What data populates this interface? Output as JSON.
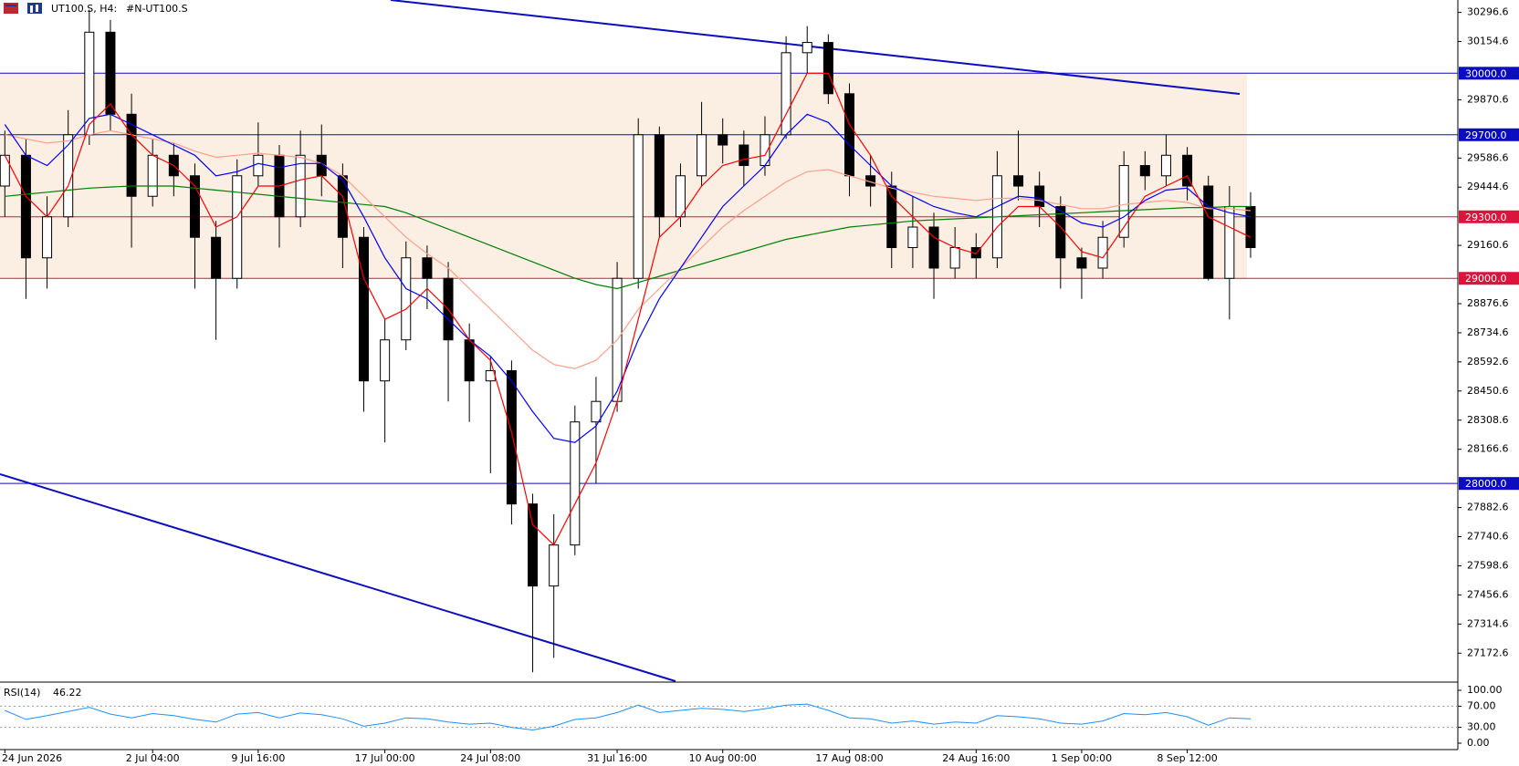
{
  "chart_data": {
    "type": "candlestick",
    "symbol": "UT100.S, H4:",
    "name": "#N-UT100.S",
    "categories": [
      "24 Jun 2026",
      null,
      null,
      null,
      null,
      null,
      null,
      "2 Jul 04:00",
      null,
      null,
      null,
      null,
      "9 Jul 16:00",
      null,
      null,
      null,
      null,
      null,
      "17 Jul 00:00",
      null,
      null,
      null,
      null,
      "24 Jul 08:00",
      null,
      null,
      null,
      null,
      null,
      "31 Jul 16:00",
      null,
      null,
      null,
      null,
      "10 Aug 00:00",
      null,
      null,
      null,
      null,
      null,
      "17 Aug 08:00",
      null,
      null,
      null,
      null,
      null,
      "24 Aug 16:00",
      null,
      null,
      null,
      null,
      "1 Sep 00:00",
      null,
      null,
      null,
      null,
      "8 Sep 12:00",
      null,
      null,
      null
    ],
    "open": [
      29450,
      29600,
      29100,
      29300,
      29700,
      30200,
      29800,
      29400,
      29600,
      29500,
      29200,
      29000,
      29500,
      29600,
      29300,
      29600,
      29500,
      29200,
      28500,
      28700,
      29100,
      29000,
      28700,
      28500,
      28550,
      27900,
      27500,
      27700,
      28300,
      28400,
      29000,
      29700,
      29300,
      29500,
      29700,
      29650,
      29550,
      29700,
      30100,
      30150,
      29900,
      29500,
      29450,
      29150,
      29250,
      29050,
      29150,
      29100,
      29500,
      29450,
      29350,
      29100,
      29050,
      29200,
      29550,
      29500,
      29600,
      29450,
      29000,
      29350
    ],
    "high": [
      29720,
      29680,
      29400,
      29820,
      30310,
      30260,
      29900,
      29680,
      29660,
      29560,
      29280,
      29580,
      29760,
      29650,
      29720,
      29750,
      29560,
      29250,
      28800,
      29180,
      29160,
      29080,
      28780,
      28620,
      28600,
      27950,
      27850,
      28380,
      28520,
      29080,
      29780,
      29740,
      29560,
      29860,
      29780,
      29720,
      29790,
      30180,
      30230,
      30190,
      29950,
      29600,
      29520,
      29400,
      29320,
      29250,
      29220,
      29620,
      29720,
      29520,
      29400,
      29150,
      29280,
      29620,
      29620,
      29700,
      29640,
      29500,
      29450,
      29420
    ],
    "low": [
      29300,
      28900,
      28950,
      29250,
      29650,
      29720,
      29150,
      29350,
      29400,
      28950,
      28700,
      28950,
      29450,
      29150,
      29250,
      29400,
      29050,
      28350,
      28200,
      28650,
      28850,
      28400,
      28300,
      28050,
      27800,
      27080,
      27150,
      27650,
      28000,
      28350,
      28950,
      29200,
      29250,
      29450,
      29560,
      29450,
      29500,
      29680,
      30000,
      29850,
      29400,
      29350,
      29050,
      29050,
      28900,
      29000,
      29000,
      29050,
      29380,
      29250,
      28950,
      28900,
      29000,
      29150,
      29430,
      29450,
      29380,
      28990,
      28800,
      29100
    ],
    "close": [
      29600,
      29100,
      29300,
      29700,
      30200,
      29800,
      29400,
      29600,
      29500,
      29200,
      29000,
      29500,
      29600,
      29300,
      29600,
      29500,
      29200,
      28500,
      28700,
      29100,
      29000,
      28700,
      28500,
      28550,
      27900,
      27500,
      27700,
      28300,
      28400,
      29000,
      29700,
      29300,
      29500,
      29700,
      29650,
      29550,
      29700,
      30100,
      30150,
      29900,
      29500,
      29450,
      29150,
      29250,
      29050,
      29150,
      29100,
      29500,
      29450,
      29350,
      29100,
      29050,
      29200,
      29550,
      29500,
      29600,
      29450,
      29000,
      29350,
      29150
    ],
    "ylim": [
      27036,
      30357
    ],
    "yticks": [
      30296.6,
      30154.6,
      29870.6,
      29586.6,
      29444.6,
      29160.6,
      28876.6,
      28734.6,
      28592.6,
      28450.6,
      28308.6,
      28166.6,
      27882.6,
      27740.6,
      27598.6,
      27456.6,
      27314.6,
      27172.6
    ],
    "zone": [
      29000,
      30000
    ],
    "zone_color": "#fbeee3",
    "levels": [
      {
        "value": 30000,
        "label": "30000.0",
        "color": "#0c0cc0"
      },
      {
        "value": 29700,
        "label": "29700.0",
        "color": "#0c0cc0"
      },
      {
        "value": 29300,
        "label": "29300.0",
        "color": "#dc143c"
      },
      {
        "value": 29000,
        "label": "29000.0",
        "color": "#dc143c"
      },
      {
        "value": 28000,
        "label": "28000.0",
        "color": "#0c0cc0"
      }
    ],
    "ma": [
      {
        "color": "#008000",
        "values": [
          29400,
          29410,
          29420,
          29430,
          29440,
          29445,
          29450,
          29450,
          29450,
          29440,
          29430,
          29420,
          29410,
          29400,
          29390,
          29380,
          29370,
          29360,
          29350,
          29320,
          29280,
          29240,
          29200,
          29160,
          29120,
          29080,
          29040,
          29000,
          28970,
          28950,
          28980,
          29010,
          29040,
          29070,
          29100,
          29130,
          29160,
          29190,
          29210,
          29230,
          29250,
          29260,
          29270,
          29280,
          29285,
          29290,
          29295,
          29300,
          29305,
          29310,
          29315,
          29320,
          29325,
          29330,
          29335,
          29340,
          29345,
          29345,
          29350,
          29350
        ]
      },
      {
        "color": "#ff9f8a",
        "values": [
          29700,
          29680,
          29660,
          29670,
          29700,
          29720,
          29700,
          29680,
          29660,
          29620,
          29590,
          29600,
          29610,
          29600,
          29590,
          29560,
          29500,
          29400,
          29300,
          29200,
          29120,
          29050,
          28950,
          28850,
          28750,
          28650,
          28580,
          28560,
          28600,
          28700,
          28850,
          28950,
          29050,
          29150,
          29250,
          29330,
          29400,
          29470,
          29520,
          29530,
          29500,
          29470,
          29440,
          29420,
          29400,
          29390,
          29380,
          29390,
          29390,
          29380,
          29360,
          29340,
          29340,
          29360,
          29370,
          29380,
          29370,
          29340,
          29340,
          29330
        ]
      },
      {
        "color": "#0000ff",
        "values": [
          29750,
          29600,
          29550,
          29650,
          29780,
          29800,
          29750,
          29700,
          29650,
          29600,
          29500,
          29520,
          29560,
          29540,
          29560,
          29560,
          29480,
          29300,
          29100,
          28950,
          28900,
          28800,
          28700,
          28620,
          28500,
          28350,
          28220,
          28200,
          28280,
          28450,
          28700,
          28900,
          29050,
          29200,
          29350,
          29450,
          29550,
          29700,
          29800,
          29760,
          29650,
          29550,
          29450,
          29400,
          29350,
          29320,
          29300,
          29350,
          29400,
          29390,
          29330,
          29270,
          29250,
          29300,
          29380,
          29430,
          29440,
          29350,
          29320,
          29300
        ]
      },
      {
        "color": "#ff0000",
        "values": [
          29600,
          29400,
          29300,
          29450,
          29750,
          29850,
          29700,
          29600,
          29550,
          29450,
          29250,
          29300,
          29450,
          29450,
          29480,
          29500,
          29400,
          29000,
          28800,
          28850,
          28950,
          28850,
          28700,
          28600,
          28250,
          27800,
          27700,
          27900,
          28100,
          28400,
          28800,
          29200,
          29300,
          29450,
          29550,
          29580,
          29600,
          29800,
          30000,
          30000,
          29750,
          29600,
          29400,
          29300,
          29200,
          29150,
          29120,
          29250,
          29350,
          29350,
          29250,
          29130,
          29100,
          29250,
          29400,
          29450,
          29500,
          29300,
          29250,
          29200
        ]
      }
    ],
    "rsi": {
      "title": "RSI(14)",
      "current": 46.22,
      "color": "#1e90ff",
      "ylim": [
        0,
        100
      ],
      "yticks": [
        {
          "value": 100,
          "label": "100.00"
        },
        {
          "value": 70,
          "label": "70.00"
        },
        {
          "value": 30,
          "label": "30.00"
        },
        {
          "value": 0,
          "label": "0.00"
        }
      ],
      "levels": [
        70,
        30
      ],
      "values": [
        62,
        45,
        52,
        60,
        68,
        55,
        48,
        56,
        52,
        45,
        40,
        55,
        58,
        48,
        57,
        54,
        46,
        32,
        38,
        48,
        46,
        40,
        36,
        38,
        30,
        25,
        32,
        45,
        48,
        58,
        72,
        58,
        62,
        66,
        64,
        60,
        65,
        72,
        74,
        62,
        48,
        46,
        38,
        42,
        36,
        40,
        38,
        52,
        50,
        46,
        38,
        36,
        42,
        56,
        54,
        58,
        50,
        34,
        48,
        46.22
      ]
    }
  }
}
